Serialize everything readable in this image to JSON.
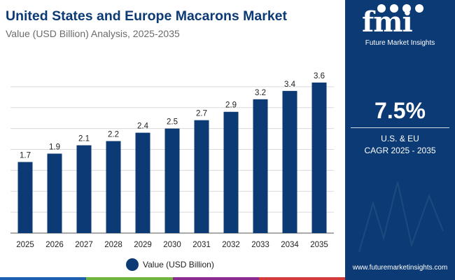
{
  "title": "United States and Europe Macarons Market",
  "subtitle": "Value (USD Billion) Analysis, 2025-2035",
  "colors": {
    "primary": "#0b3a74",
    "bar": "#0b3a74",
    "grid": "#d9d9d9",
    "axis": "#555555",
    "bottom_bar": [
      "#1f5fb0",
      "#6fb43f",
      "#8a2b8f",
      "#d43b3b"
    ]
  },
  "chart_data": {
    "type": "bar",
    "categories": [
      "2025",
      "2026",
      "2027",
      "2028",
      "2029",
      "2030",
      "2031",
      "2032",
      "2033",
      "2034",
      "2035"
    ],
    "series": [
      {
        "name": "Value (USD Billion)",
        "values": [
          1.7,
          1.9,
          2.1,
          2.2,
          2.4,
          2.5,
          2.7,
          2.9,
          3.2,
          3.4,
          3.6
        ]
      }
    ],
    "data_labels": [
      "1.7",
      "1.9",
      "2.1",
      "2.2",
      "2.4",
      "2.5",
      "2.7",
      "2.9",
      "3.2",
      "3.4",
      "3.6"
    ],
    "ylim": [
      0,
      3.9
    ],
    "grid": true,
    "y_tick_labels_shown": false,
    "legend_position": "bottom-center"
  },
  "legend": {
    "label": "Value (USD Billion)"
  },
  "side_panel": {
    "logo_letters": "fmi",
    "logo_name": "Future Market Insights",
    "cagr_value": "7.5%",
    "cagr_region": "U.S. & EU",
    "cagr_period": "CAGR 2025 - 2035",
    "website": "www.futuremarketinsights.com"
  }
}
